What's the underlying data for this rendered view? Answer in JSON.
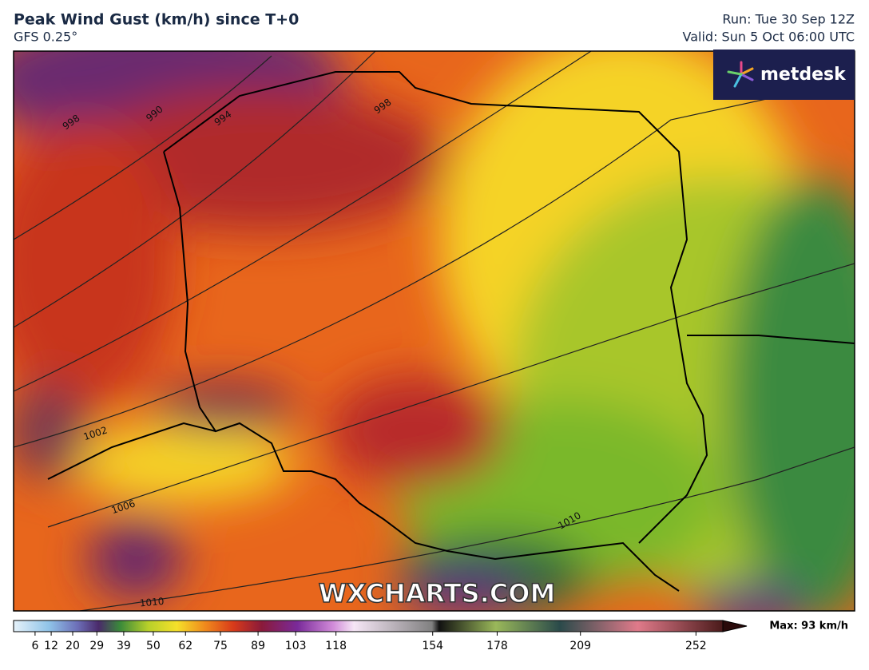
{
  "header": {
    "title": "Peak Wind Gust (km/h) since T+0",
    "model": "GFS 0.25°",
    "run": "Run: Tue 30 Sep 12Z",
    "valid": "Valid: Sun 5 Oct 06:00 UTC"
  },
  "logo": "metdesk",
  "watermark": "WXCHARTS.COM",
  "isobar_labels": [
    "998",
    "994",
    "990",
    "998",
    "1002",
    "1006",
    "1010",
    "1010"
  ],
  "colorbar": {
    "lim": [
      -2,
      262
    ],
    "ticks": [
      6,
      12,
      20,
      29,
      39,
      50,
      62,
      75,
      89,
      103,
      118,
      154,
      178,
      209,
      252
    ],
    "max_label": "Max: 93 km/h"
  }
}
